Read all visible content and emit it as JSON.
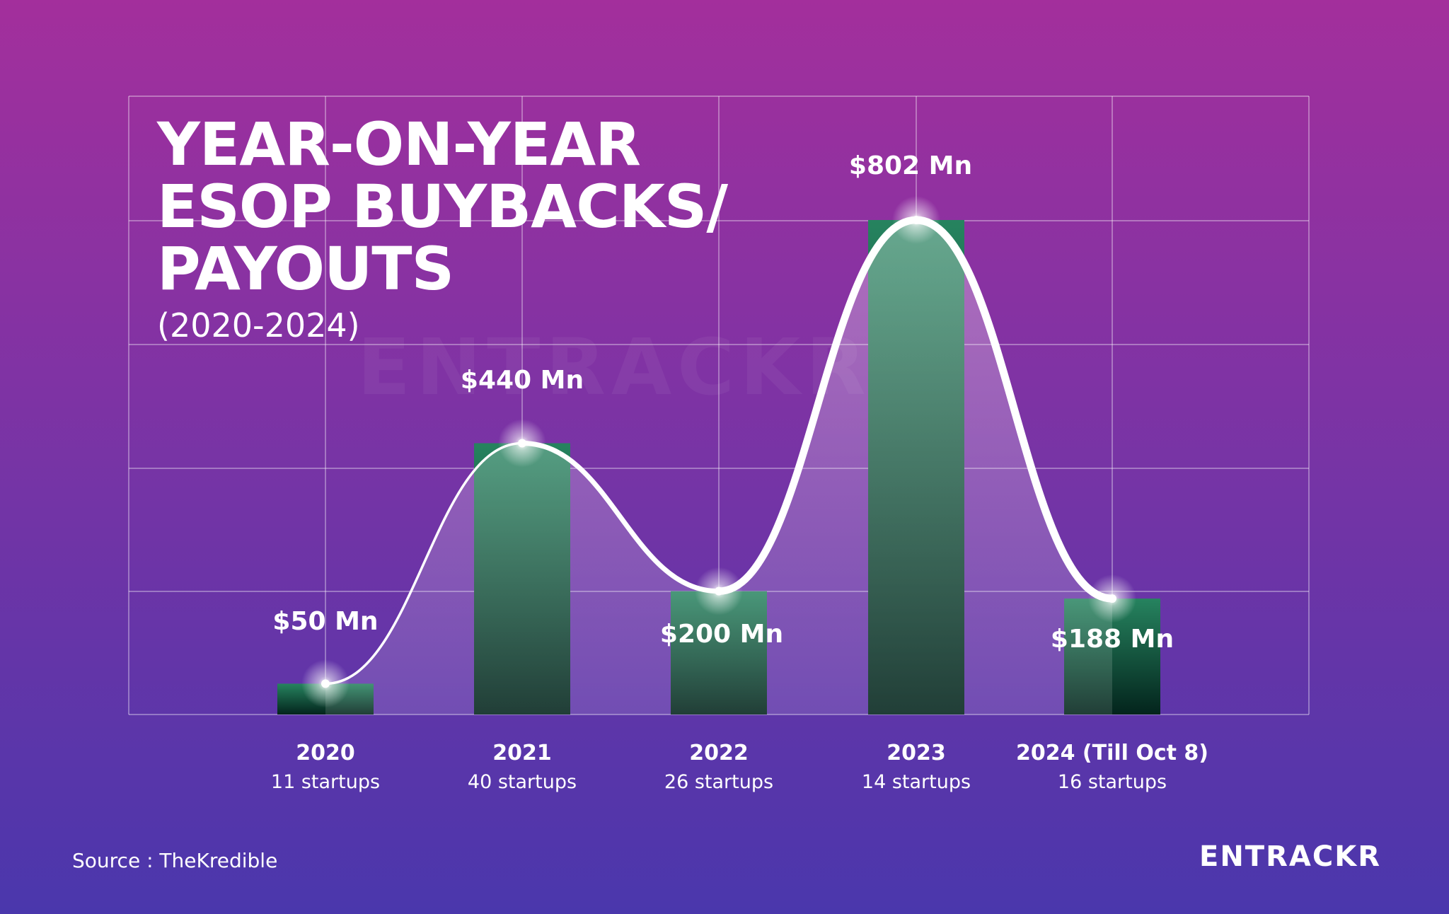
{
  "header": {
    "title_lines": [
      "YEAR-ON-YEAR",
      "ESOP BUYBACKS/",
      "PAYOUTS"
    ],
    "subtitle": "(2020-2024)"
  },
  "footer": {
    "source": "Source : TheKredible",
    "brand": "ENTRACKR"
  },
  "watermark": "ENTRACKR",
  "colors": {
    "background_top": "#a32f9c",
    "background_bottom": "#4a37ac",
    "bar_top": "#26835f",
    "bar_bottom": "#03241c",
    "curve": "#ffffff",
    "grid": "rgba(255,255,255,0.45)"
  },
  "chart_data": {
    "type": "bar",
    "categories": [
      "2020",
      "2021",
      "2022",
      "2023",
      "2024 (Till Oct 8)"
    ],
    "sublabels": [
      "11 startups",
      "40 startups",
      "26 startups",
      "14 startups",
      "16 startups"
    ],
    "values": [
      50,
      440,
      200,
      802,
      188
    ],
    "data_labels": [
      "$50 Mn",
      "$440 Mn",
      "$200 Mn",
      "$802 Mn",
      "$188 Mn"
    ],
    "unit": "Mn USD",
    "overlay": "smooth-line-through-bar-tops",
    "grid": true,
    "ylim": [
      0,
      1000
    ]
  }
}
